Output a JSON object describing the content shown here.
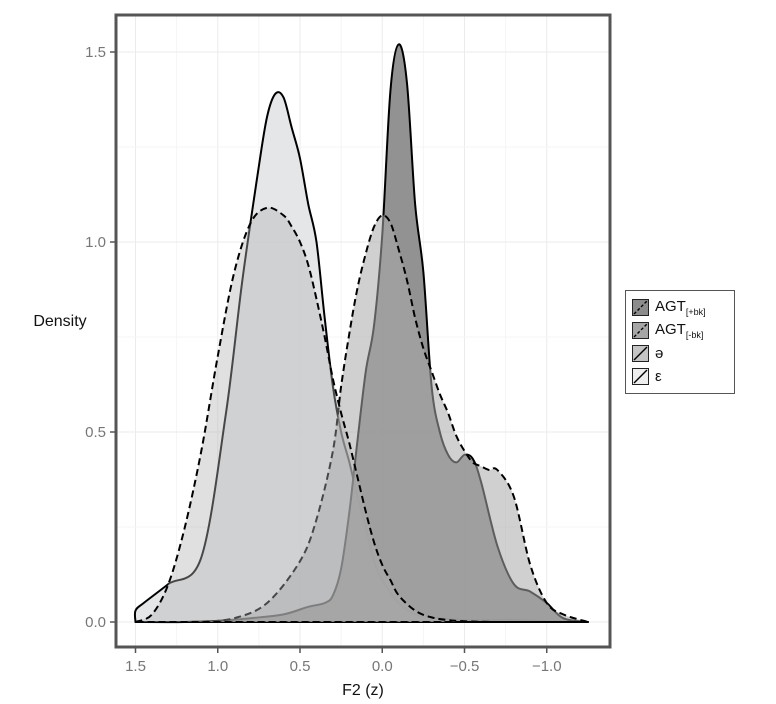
{
  "chart_data": {
    "type": "area",
    "title": "",
    "xlabel": "F2 (z)",
    "ylabel": "Density",
    "xlim": [
      1.6,
      -1.35
    ],
    "ylim": [
      -0.07,
      1.6
    ],
    "x_reversed": true,
    "x_ticks": [
      1.5,
      1.0,
      0.5,
      0.0,
      -0.5,
      -1.0
    ],
    "x_tick_labels": [
      "1.5",
      "1.0",
      "0.5",
      "0.0",
      "−0.5",
      "−1.0"
    ],
    "y_ticks": [
      0.0,
      0.5,
      1.0,
      1.5
    ],
    "y_tick_labels": [
      "0.0",
      "0.5",
      "1.0",
      "1.5"
    ],
    "grid": true,
    "legend_position": "right",
    "legend": [
      {
        "base": "AGT",
        "sub": "[+bk]",
        "fill": "#8c8c8c",
        "line": "dashed"
      },
      {
        "base": "AGT",
        "sub": "[-bk]",
        "fill": "#a6a6a6",
        "line": "dashed"
      },
      {
        "base": "ə",
        "sub": "",
        "fill": "#c4c4c4",
        "line": "solid"
      },
      {
        "base": "ε",
        "sub": "",
        "fill": "#eeeeee",
        "line": "solid"
      }
    ],
    "series": [
      {
        "name": "ε",
        "fill": "#e3e4e6",
        "stroke": "#000000",
        "dashed": false,
        "fill_opacity": 0.92,
        "x": [
          1.5,
          1.5,
          1.45,
          1.3,
          1.1,
          0.95,
          0.85,
          0.75,
          0.7,
          0.65,
          0.6,
          0.55,
          0.5,
          0.45,
          0.4,
          0.35,
          0.3,
          0.25,
          0.2,
          0.15,
          0.1,
          0.05,
          0.0,
          -0.1,
          -0.2,
          -0.3,
          -0.4,
          -0.5,
          -0.6,
          -0.8,
          -1.0,
          -1.25
        ],
        "y": [
          0.0,
          0.03,
          0.05,
          0.1,
          0.17,
          0.55,
          0.9,
          1.2,
          1.33,
          1.39,
          1.38,
          1.3,
          1.22,
          1.1,
          1.0,
          0.8,
          0.62,
          0.5,
          0.42,
          0.33,
          0.25,
          0.16,
          0.11,
          0.05,
          0.02,
          0.012,
          0.008,
          0.005,
          0.004,
          0.006,
          0.002,
          0.0
        ]
      },
      {
        "name": "AGT[+bk]",
        "fill": "#8c8c8c",
        "stroke": "#000000",
        "dashed": false,
        "fill_opacity": 0.95,
        "x": [
          1.5,
          1.2,
          1.0,
          0.8,
          0.6,
          0.45,
          0.35,
          0.3,
          0.25,
          0.2,
          0.15,
          0.1,
          0.05,
          0.0,
          -0.05,
          -0.1,
          -0.15,
          -0.2,
          -0.25,
          -0.3,
          -0.35,
          -0.4,
          -0.45,
          -0.5,
          -0.55,
          -0.6,
          -0.7,
          -0.8,
          -0.9,
          -1.0,
          -1.1,
          -1.25
        ],
        "y": [
          0.0,
          0.0,
          0.003,
          0.01,
          0.02,
          0.04,
          0.05,
          0.07,
          0.14,
          0.29,
          0.48,
          0.66,
          0.78,
          1.02,
          1.4,
          1.52,
          1.42,
          1.1,
          0.92,
          0.62,
          0.5,
          0.44,
          0.42,
          0.44,
          0.43,
          0.37,
          0.2,
          0.1,
          0.08,
          0.05,
          0.01,
          0.0
        ]
      },
      {
        "name": "AGT[-bk]",
        "fill": "#a9a9a9",
        "stroke": "#000000",
        "dashed": true,
        "fill_opacity": 0.55,
        "x": [
          1.5,
          1.3,
          1.1,
          0.9,
          0.7,
          0.5,
          0.4,
          0.3,
          0.25,
          0.2,
          0.15,
          0.1,
          0.05,
          0.0,
          -0.05,
          -0.1,
          -0.15,
          -0.2,
          -0.25,
          -0.3,
          -0.35,
          -0.4,
          -0.45,
          -0.5,
          -0.55,
          -0.6,
          -0.65,
          -0.7,
          -0.8,
          -0.9,
          -1.0,
          -1.1,
          -1.25
        ],
        "y": [
          0.0,
          0.0,
          0.001,
          0.01,
          0.05,
          0.16,
          0.27,
          0.45,
          0.62,
          0.76,
          0.88,
          0.97,
          1.04,
          1.07,
          1.05,
          0.98,
          0.9,
          0.8,
          0.72,
          0.66,
          0.6,
          0.55,
          0.49,
          0.45,
          0.42,
          0.41,
          0.4,
          0.4,
          0.33,
          0.15,
          0.05,
          0.02,
          0.0
        ]
      },
      {
        "name": "ə",
        "fill": "#b2b2b2",
        "stroke": "#000000",
        "dashed": true,
        "fill_opacity": 0.4,
        "x": [
          1.5,
          1.4,
          1.3,
          1.2,
          1.1,
          1.0,
          0.9,
          0.8,
          0.7,
          0.6,
          0.55,
          0.5,
          0.45,
          0.4,
          0.35,
          0.3,
          0.25,
          0.2,
          0.15,
          0.1,
          0.05,
          0.0,
          -0.05,
          -0.1,
          -0.2,
          -0.3,
          -0.4,
          -0.5,
          -0.7,
          -1.0,
          -1.25
        ],
        "y": [
          0.0,
          0.02,
          0.1,
          0.25,
          0.45,
          0.7,
          0.92,
          1.05,
          1.09,
          1.07,
          1.04,
          1.0,
          0.94,
          0.85,
          0.75,
          0.64,
          0.55,
          0.47,
          0.38,
          0.29,
          0.21,
          0.15,
          0.11,
          0.07,
          0.03,
          0.012,
          0.005,
          0.002,
          0.0,
          0.0,
          0.0
        ]
      }
    ]
  }
}
